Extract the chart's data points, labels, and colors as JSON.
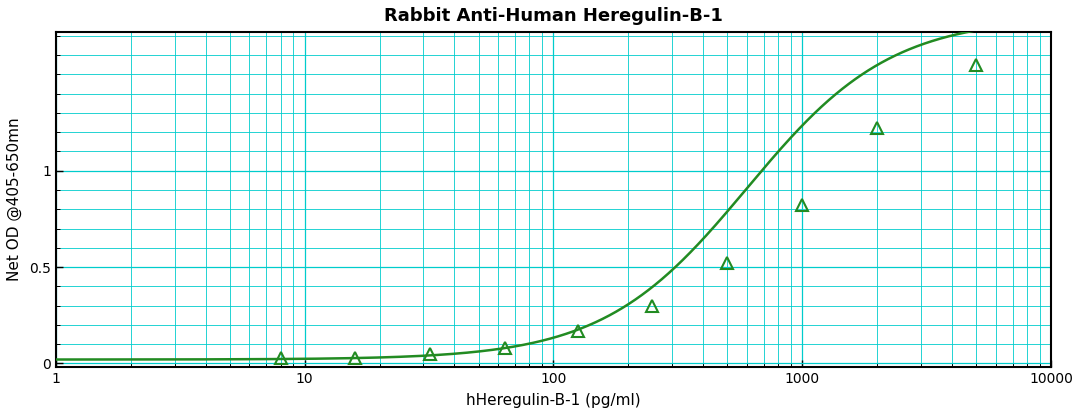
{
  "title": "Rabbit Anti-Human Heregulin-B-1",
  "xlabel": "hHeregulin-B-1 (pg/ml)",
  "ylabel": "Net OD @405-650mn",
  "data_points_x": [
    8,
    16,
    32,
    64,
    125,
    250,
    500,
    1000,
    2000,
    5000
  ],
  "data_points_y": [
    0.03,
    0.03,
    0.05,
    0.08,
    0.17,
    0.3,
    0.52,
    0.82,
    1.22,
    1.55
  ],
  "xmin": 1,
  "xmax": 10000,
  "ymin": -0.02,
  "ymax": 1.72,
  "line_color": "#228B22",
  "marker_color": "#228B22",
  "grid_major_color": "#00CCCC",
  "grid_minor_color": "#00CCCC",
  "background_color": "#ffffff",
  "yticks": [
    0,
    0.5,
    1
  ],
  "xticks": [
    1,
    10,
    100,
    1000,
    10000
  ],
  "title_fontsize": 13,
  "label_fontsize": 11,
  "tick_fontsize": 10
}
